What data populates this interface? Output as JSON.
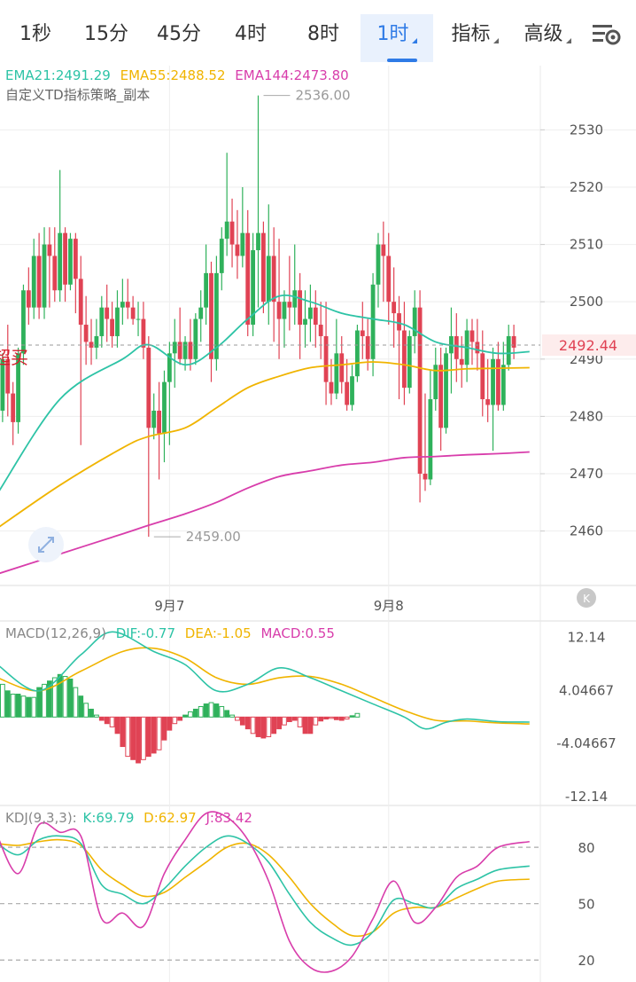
{
  "tabs": [
    {
      "label": "1秒"
    },
    {
      "label": "15分"
    },
    {
      "label": "45分"
    },
    {
      "label": "4时"
    },
    {
      "label": "8时"
    },
    {
      "label": "1时",
      "active": true
    },
    {
      "label": "指标",
      "dropdown": true
    },
    {
      "label": "高级",
      "dropdown": true
    }
  ],
  "settings_icon": "settings-gear-icon",
  "ema_legend": [
    {
      "text": "EMA21:2491.29",
      "color": "#2dc3a6"
    },
    {
      "text": "EMA55:2488.52",
      "color": "#f0b400"
    },
    {
      "text": "EMA144:2473.80",
      "color": "#d83dab"
    }
  ],
  "strategy_label": "自定义TD指标策略_副本",
  "signal_label": "超买",
  "colors": {
    "up": "#2fb15b",
    "down": "#e04354",
    "ema21": "#2dc3a6",
    "ema55": "#f0b400",
    "ema144": "#d83dab",
    "k": "#2dc3a6",
    "d": "#f0b400",
    "j": "#d83dab",
    "axis_text": "#555555",
    "grid": "#eeeeee"
  },
  "chart_data": {
    "type": "candlestick",
    "price_axis": {
      "ticks": [
        2460,
        2470,
        2480,
        2490,
        2500,
        2510,
        2520,
        2530
      ],
      "range": [
        2450.5,
        2541.2
      ]
    },
    "current_price": 2492.44,
    "max_label": "2536.00",
    "max_value": 2536.0,
    "max_index": 50,
    "min_label": "2459.00",
    "min_value": 2459.0,
    "min_index": 29,
    "date_labels": [
      {
        "text": "9月7",
        "index": 33
      },
      {
        "text": "9月8",
        "index": 75
      }
    ],
    "candles": [
      [
        2490,
        2493,
        2478,
        2481
      ],
      [
        2481,
        2491,
        2479,
        2490
      ],
      [
        2490,
        2496,
        2480,
        2484
      ],
      [
        2484,
        2486,
        2475,
        2479
      ],
      [
        2479,
        2492,
        2477,
        2491
      ],
      [
        2491,
        2503,
        2489,
        2502
      ],
      [
        2502,
        2506,
        2496,
        2499
      ],
      [
        2499,
        2511,
        2497,
        2508
      ],
      [
        2508,
        2512,
        2497,
        2499
      ],
      [
        2499,
        2513,
        2497,
        2510
      ],
      [
        2510,
        2513,
        2499,
        2508
      ],
      [
        2508,
        2513,
        2500,
        2502
      ],
      [
        2502,
        2523,
        2500,
        2512
      ],
      [
        2512,
        2513,
        2500,
        2503
      ],
      [
        2503,
        2512,
        2502,
        2511
      ],
      [
        2511,
        2512,
        2498,
        2504
      ],
      [
        2504,
        2508,
        2475,
        2496
      ],
      [
        2496,
        2501,
        2489,
        2493
      ],
      [
        2493,
        2497,
        2489,
        2492
      ],
      [
        2492,
        2497,
        2490,
        2494
      ],
      [
        2494,
        2501,
        2492,
        2499
      ],
      [
        2499,
        2503,
        2493,
        2497
      ],
      [
        2497,
        2500,
        2492,
        2494
      ],
      [
        2494,
        2502,
        2492,
        2499
      ],
      [
        2499,
        2504,
        2496,
        2500
      ],
      [
        2500,
        2504,
        2497,
        2499
      ],
      [
        2499,
        2501,
        2496,
        2497
      ],
      [
        2497,
        2500,
        2494,
        2497
      ],
      [
        2497,
        2500,
        2490,
        2492
      ],
      [
        2492,
        2494,
        2459,
        2478
      ],
      [
        2478,
        2484,
        2476,
        2481
      ],
      [
        2481,
        2486,
        2469,
        2477
      ],
      [
        2477,
        2488,
        2472,
        2486
      ],
      [
        2486,
        2493,
        2475,
        2491
      ],
      [
        2491,
        2497,
        2485,
        2493
      ],
      [
        2493,
        2499,
        2489,
        2490
      ],
      [
        2490,
        2494,
        2488,
        2493
      ],
      [
        2493,
        2497,
        2488,
        2490
      ],
      [
        2490,
        2498,
        2489,
        2497
      ],
      [
        2497,
        2502,
        2493,
        2499
      ],
      [
        2499,
        2510,
        2496,
        2505
      ],
      [
        2505,
        2507,
        2486,
        2490
      ],
      [
        2490,
        2508,
        2488,
        2505
      ],
      [
        2505,
        2513,
        2502,
        2511
      ],
      [
        2511,
        2526,
        2508,
        2514
      ],
      [
        2514,
        2518,
        2506,
        2510
      ],
      [
        2510,
        2516,
        2504,
        2508
      ],
      [
        2508,
        2520,
        2506,
        2512
      ],
      [
        2512,
        2516,
        2494,
        2496
      ],
      [
        2496,
        2512,
        2494,
        2509
      ],
      [
        2509,
        2536,
        2499,
        2512
      ],
      [
        2512,
        2514,
        2498,
        2500
      ],
      [
        2500,
        2517,
        2496,
        2508
      ],
      [
        2508,
        2513,
        2493,
        2500
      ],
      [
        2500,
        2511,
        2490,
        2497
      ],
      [
        2497,
        2502,
        2492,
        2500
      ],
      [
        2500,
        2508,
        2495,
        2499
      ],
      [
        2499,
        2510,
        2496,
        2502
      ],
      [
        2502,
        2505,
        2490,
        2496
      ],
      [
        2496,
        2502,
        2492,
        2497
      ],
      [
        2497,
        2503,
        2493,
        2499
      ],
      [
        2499,
        2502,
        2492,
        2496
      ],
      [
        2496,
        2500,
        2490,
        2494
      ],
      [
        2494,
        2500,
        2482,
        2486
      ],
      [
        2486,
        2490,
        2482,
        2484
      ],
      [
        2484,
        2497,
        2483,
        2491
      ],
      [
        2491,
        2494,
        2484,
        2486
      ],
      [
        2486,
        2490,
        2481,
        2482
      ],
      [
        2482,
        2489,
        2481,
        2487
      ],
      [
        2487,
        2496,
        2486,
        2495
      ],
      [
        2495,
        2500,
        2490,
        2494
      ],
      [
        2494,
        2497,
        2488,
        2490
      ],
      [
        2490,
        2505,
        2487,
        2503
      ],
      [
        2503,
        2512,
        2499,
        2510
      ],
      [
        2510,
        2514,
        2500,
        2508
      ],
      [
        2508,
        2512,
        2496,
        2500
      ],
      [
        2500,
        2506,
        2492,
        2498
      ],
      [
        2498,
        2501,
        2483,
        2495
      ],
      [
        2495,
        2500,
        2482,
        2485
      ],
      [
        2485,
        2495,
        2484,
        2494
      ],
      [
        2494,
        2502,
        2491,
        2499
      ],
      [
        2499,
        2502,
        2465,
        2470
      ],
      [
        2470,
        2484,
        2467,
        2469
      ],
      [
        2469,
        2488,
        2468,
        2483
      ],
      [
        2483,
        2492,
        2481,
        2489
      ],
      [
        2489,
        2492,
        2474,
        2478
      ],
      [
        2478,
        2492,
        2477,
        2491
      ],
      [
        2491,
        2499,
        2484,
        2494
      ],
      [
        2494,
        2498,
        2486,
        2490
      ],
      [
        2490,
        2494,
        2485,
        2489
      ],
      [
        2489,
        2497,
        2486,
        2495
      ],
      [
        2495,
        2497,
        2489,
        2493
      ],
      [
        2493,
        2497,
        2488,
        2491
      ],
      [
        2491,
        2495,
        2480,
        2483
      ],
      [
        2483,
        2490,
        2479,
        2482
      ],
      [
        2482,
        2492,
        2474,
        2490
      ],
      [
        2490,
        2493,
        2481,
        2482
      ],
      [
        2482,
        2493,
        2481,
        2489
      ],
      [
        2489,
        2496,
        2488,
        2494
      ],
      [
        2494,
        2496,
        2490,
        2492
      ]
    ],
    "ema21": [
      [
        0,
        2466.5
      ],
      [
        12,
        2483
      ],
      [
        24,
        2490
      ],
      [
        29,
        2492.5
      ],
      [
        36,
        2489
      ],
      [
        42,
        2492
      ],
      [
        48,
        2497
      ],
      [
        54,
        2501
      ],
      [
        60,
        2500
      ],
      [
        66,
        2498
      ],
      [
        72,
        2497
      ],
      [
        78,
        2496
      ],
      [
        84,
        2493
      ],
      [
        90,
        2492
      ],
      [
        96,
        2491
      ],
      [
        102,
        2491.3
      ]
    ],
    "ema55": [
      [
        0,
        2460.5
      ],
      [
        12,
        2468
      ],
      [
        24,
        2474.5
      ],
      [
        29,
        2476.5
      ],
      [
        36,
        2478
      ],
      [
        42,
        2481.5
      ],
      [
        48,
        2485
      ],
      [
        54,
        2487
      ],
      [
        60,
        2488.5
      ],
      [
        66,
        2489
      ],
      [
        72,
        2489.5
      ],
      [
        78,
        2489
      ],
      [
        84,
        2488
      ],
      [
        90,
        2488.3
      ],
      [
        96,
        2488.4
      ],
      [
        102,
        2488.5
      ]
    ],
    "ema144": [
      [
        0,
        2452.5
      ],
      [
        12,
        2456
      ],
      [
        24,
        2459.5
      ],
      [
        29,
        2461
      ],
      [
        36,
        2463
      ],
      [
        42,
        2465
      ],
      [
        48,
        2467.5
      ],
      [
        54,
        2469.5
      ],
      [
        60,
        2470.5
      ],
      [
        66,
        2471.5
      ],
      [
        72,
        2472
      ],
      [
        78,
        2472.8
      ],
      [
        84,
        2473
      ],
      [
        90,
        2473.3
      ],
      [
        96,
        2473.5
      ],
      [
        102,
        2473.8
      ]
    ],
    "macd": {
      "legend": [
        {
          "text": "MACD(12,26,9)",
          "color": "#888888"
        },
        {
          "text": "DIF:-0.77",
          "color": "#2dc3a6"
        },
        {
          "text": "DEA:-1.05",
          "color": "#f0b400"
        },
        {
          "text": "MACD:0.55",
          "color": "#d83dab"
        }
      ],
      "axis_labels": [
        "12.14",
        "4.04667",
        "-4.04667",
        "-12.14"
      ],
      "axis_values": [
        12.14,
        4.04667,
        -4.04667,
        -12.14
      ],
      "range": [
        -13.5,
        14.4
      ],
      "dif": [
        [
          0,
          8
        ],
        [
          8,
          4
        ],
        [
          16,
          9.5
        ],
        [
          22,
          13
        ],
        [
          30,
          10
        ],
        [
          36,
          8
        ],
        [
          42,
          4
        ],
        [
          48,
          5
        ],
        [
          54,
          7.5
        ],
        [
          60,
          6
        ],
        [
          66,
          4
        ],
        [
          72,
          2
        ],
        [
          78,
          0
        ],
        [
          82,
          -1.8
        ],
        [
          86,
          -0.8
        ],
        [
          90,
          -0.3
        ],
        [
          96,
          -0.7
        ],
        [
          102,
          -0.77
        ]
      ],
      "dea": [
        [
          0,
          6
        ],
        [
          8,
          4
        ],
        [
          16,
          7
        ],
        [
          24,
          10
        ],
        [
          30,
          10.5
        ],
        [
          36,
          9
        ],
        [
          42,
          6
        ],
        [
          48,
          5
        ],
        [
          54,
          6
        ],
        [
          60,
          6.2
        ],
        [
          66,
          5
        ],
        [
          72,
          3
        ],
        [
          78,
          1
        ],
        [
          84,
          -0.5
        ],
        [
          90,
          -0.6
        ],
        [
          96,
          -0.9
        ],
        [
          102,
          -1.05
        ]
      ],
      "hist": [
        4.5,
        5,
        4,
        3.5,
        3.5,
        3.2,
        3,
        3,
        4.5,
        5,
        5.5,
        6,
        6.5,
        6.2,
        5.8,
        4.5,
        3.2,
        2.1,
        1.2,
        0.3,
        -0.5,
        -1,
        -1.5,
        -2.5,
        -4.5,
        -6,
        -6.5,
        -7,
        -6.5,
        -6,
        -5.5,
        -5,
        -3.5,
        -2,
        -1,
        -0.5,
        0.3,
        0.8,
        1.2,
        1.6,
        2.0,
        2.2,
        2.0,
        1.6,
        1.0,
        0.3,
        -0.5,
        -1.2,
        -1.8,
        -2.5,
        -3.0,
        -3.2,
        -3.0,
        -2.5,
        -1.8,
        -1.2,
        -0.7,
        -0.5,
        -1.5,
        -2.5,
        -2.5,
        -1.2,
        -0.6,
        -0.3,
        -0.2,
        -0.4,
        -0.5,
        -0.3,
        0.2,
        0.55
      ]
    },
    "kdj": {
      "legend": [
        {
          "text": "KDJ(9,3,3):",
          "color": "#888888"
        },
        {
          "text": "K:69.79",
          "color": "#2dc3a6"
        },
        {
          "text": "D:62.97",
          "color": "#f0b400"
        },
        {
          "text": "J:83.42",
          "color": "#d83dab"
        }
      ],
      "axis_labels": [
        "80",
        "50",
        "20"
      ],
      "axis_values": [
        80,
        50,
        20
      ],
      "range": [
        8.3,
        101.3
      ],
      "k": [
        [
          0,
          82
        ],
        [
          4,
          76
        ],
        [
          8,
          84
        ],
        [
          12,
          86
        ],
        [
          16,
          82
        ],
        [
          20,
          60
        ],
        [
          24,
          55
        ],
        [
          28,
          50
        ],
        [
          32,
          58
        ],
        [
          36,
          70
        ],
        [
          40,
          80
        ],
        [
          44,
          86
        ],
        [
          48,
          82
        ],
        [
          52,
          72
        ],
        [
          56,
          55
        ],
        [
          60,
          40
        ],
        [
          64,
          32
        ],
        [
          68,
          28
        ],
        [
          72,
          35
        ],
        [
          76,
          52
        ],
        [
          80,
          50
        ],
        [
          84,
          48
        ],
        [
          88,
          58
        ],
        [
          92,
          63
        ],
        [
          96,
          68
        ],
        [
          102,
          70
        ]
      ],
      "d": [
        [
          0,
          82
        ],
        [
          4,
          81
        ],
        [
          8,
          83
        ],
        [
          12,
          84
        ],
        [
          16,
          81
        ],
        [
          20,
          68
        ],
        [
          24,
          60
        ],
        [
          28,
          54
        ],
        [
          32,
          56
        ],
        [
          36,
          64
        ],
        [
          40,
          72
        ],
        [
          44,
          80
        ],
        [
          48,
          82
        ],
        [
          52,
          76
        ],
        [
          56,
          64
        ],
        [
          60,
          50
        ],
        [
          64,
          40
        ],
        [
          68,
          33
        ],
        [
          72,
          35
        ],
        [
          76,
          45
        ],
        [
          80,
          48
        ],
        [
          84,
          48
        ],
        [
          88,
          53
        ],
        [
          92,
          58
        ],
        [
          96,
          62
        ],
        [
          102,
          63
        ]
      ],
      "j": [
        [
          0,
          86
        ],
        [
          4,
          66
        ],
        [
          8,
          92
        ],
        [
          12,
          88
        ],
        [
          16,
          86
        ],
        [
          20,
          42
        ],
        [
          24,
          45
        ],
        [
          28,
          38
        ],
        [
          32,
          66
        ],
        [
          36,
          84
        ],
        [
          40,
          98
        ],
        [
          44,
          96
        ],
        [
          48,
          84
        ],
        [
          52,
          62
        ],
        [
          56,
          30
        ],
        [
          60,
          16
        ],
        [
          64,
          14
        ],
        [
          68,
          22
        ],
        [
          72,
          42
        ],
        [
          76,
          62
        ],
        [
          80,
          40
        ],
        [
          84,
          48
        ],
        [
          88,
          64
        ],
        [
          92,
          70
        ],
        [
          96,
          80
        ],
        [
          102,
          83
        ]
      ]
    }
  }
}
